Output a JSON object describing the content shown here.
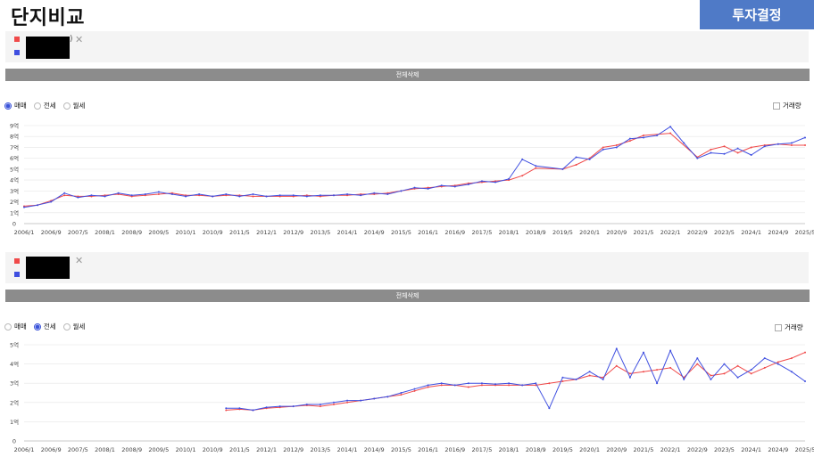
{
  "header": {
    "title": "단지비교",
    "decide_button": "투자결정"
  },
  "compare_panels": [
    {
      "delete_all_label": "전체삭제",
      "close_glyph": "✕",
      "legend_text_suffix": ")"
    },
    {
      "delete_all_label": "전체삭제",
      "close_glyph": "✕",
      "legend_text_suffix": ""
    }
  ],
  "controls": [
    {
      "radio_options": [
        "매매",
        "전세",
        "월세"
      ],
      "selected": 0,
      "volume_label": "거래량"
    },
    {
      "radio_options": [
        "매매",
        "전세",
        "월세"
      ],
      "selected": 1,
      "volume_label": "거래량"
    }
  ],
  "colors": {
    "series_red": "#f04a4a",
    "series_blue": "#3f4fe0",
    "accent": "#4f7ac7"
  },
  "chart_data": [
    {
      "type": "line",
      "title": "",
      "xlabel": "",
      "ylabel": "",
      "ylim": [
        0,
        9
      ],
      "grid": true,
      "yticks": [
        0,
        1,
        2,
        3,
        4,
        5,
        6,
        7,
        8,
        9
      ],
      "ytick_labels": [
        "0",
        "1억",
        "2억",
        "3억",
        "4억",
        "5억",
        "6억",
        "7억",
        "8억",
        "9억"
      ],
      "xticks": [
        "2006/1",
        "2006/9",
        "2007/5",
        "2008/1",
        "2008/9",
        "2009/5",
        "2010/1",
        "2010/9",
        "2011/5",
        "2012/1",
        "2012/9",
        "2013/5",
        "2014/1",
        "2014/9",
        "2015/5",
        "2016/1",
        "2016/9",
        "2017/5",
        "2018/1",
        "2018/9",
        "2019/5",
        "2020/1",
        "2020/9",
        "2021/5",
        "2022/1",
        "2022/9",
        "2023/5",
        "2024/1",
        "2024/9",
        "2025/5"
      ],
      "series": [
        {
          "color": "red",
          "points": [
            [
              0,
              1.6
            ],
            [
              0.5,
              1.7
            ],
            [
              1,
              2.1
            ],
            [
              1.5,
              2.6
            ],
            [
              2,
              2.5
            ],
            [
              2.5,
              2.5
            ],
            [
              3,
              2.6
            ],
            [
              3.5,
              2.7
            ],
            [
              4,
              2.5
            ],
            [
              4.5,
              2.6
            ],
            [
              5,
              2.7
            ],
            [
              5.5,
              2.8
            ],
            [
              6,
              2.6
            ],
            [
              6.5,
              2.6
            ],
            [
              7,
              2.5
            ],
            [
              7.5,
              2.6
            ],
            [
              8,
              2.6
            ],
            [
              8.5,
              2.5
            ],
            [
              9,
              2.5
            ],
            [
              9.5,
              2.5
            ],
            [
              10,
              2.5
            ],
            [
              10.5,
              2.6
            ],
            [
              11,
              2.5
            ],
            [
              11.5,
              2.6
            ],
            [
              12,
              2.6
            ],
            [
              12.5,
              2.7
            ],
            [
              13,
              2.7
            ],
            [
              13.5,
              2.8
            ],
            [
              14,
              3.0
            ],
            [
              14.5,
              3.2
            ],
            [
              15,
              3.3
            ],
            [
              15.5,
              3.4
            ],
            [
              16,
              3.5
            ],
            [
              16.5,
              3.7
            ],
            [
              17,
              3.8
            ],
            [
              17.5,
              3.9
            ],
            [
              18,
              4.0
            ],
            [
              18.5,
              4.4
            ],
            [
              19,
              5.1
            ],
            [
              20,
              5.0
            ],
            [
              20.5,
              5.4
            ],
            [
              21,
              6.0
            ],
            [
              21.5,
              7.0
            ],
            [
              22,
              7.2
            ],
            [
              22.5,
              7.6
            ],
            [
              23,
              8.1
            ],
            [
              24,
              8.3
            ],
            [
              25,
              6.1
            ],
            [
              25.5,
              6.8
            ],
            [
              26,
              7.1
            ],
            [
              26.5,
              6.5
            ],
            [
              27,
              7.0
            ],
            [
              27.5,
              7.2
            ],
            [
              28,
              7.3
            ],
            [
              28.5,
              7.2
            ],
            [
              29,
              7.2
            ]
          ]
        },
        {
          "color": "blue",
          "points": [
            [
              0,
              1.5
            ],
            [
              0.5,
              1.7
            ],
            [
              1,
              2.0
            ],
            [
              1.5,
              2.8
            ],
            [
              2,
              2.4
            ],
            [
              2.5,
              2.6
            ],
            [
              3,
              2.5
            ],
            [
              3.5,
              2.8
            ],
            [
              4,
              2.6
            ],
            [
              4.5,
              2.7
            ],
            [
              5,
              2.9
            ],
            [
              5.5,
              2.7
            ],
            [
              6,
              2.5
            ],
            [
              6.5,
              2.7
            ],
            [
              7,
              2.5
            ],
            [
              7.5,
              2.7
            ],
            [
              8,
              2.5
            ],
            [
              8.5,
              2.7
            ],
            [
              9,
              2.5
            ],
            [
              9.5,
              2.6
            ],
            [
              10,
              2.6
            ],
            [
              10.5,
              2.5
            ],
            [
              11,
              2.6
            ],
            [
              11.5,
              2.6
            ],
            [
              12,
              2.7
            ],
            [
              12.5,
              2.6
            ],
            [
              13,
              2.8
            ],
            [
              13.5,
              2.7
            ],
            [
              14,
              3.0
            ],
            [
              14.5,
              3.3
            ],
            [
              15,
              3.2
            ],
            [
              15.5,
              3.5
            ],
            [
              16,
              3.4
            ],
            [
              16.5,
              3.6
            ],
            [
              17,
              3.9
            ],
            [
              17.5,
              3.8
            ],
            [
              18,
              4.1
            ],
            [
              18.5,
              5.9
            ],
            [
              19,
              5.3
            ],
            [
              20,
              5.0
            ],
            [
              20.5,
              6.1
            ],
            [
              21,
              5.9
            ],
            [
              21.5,
              6.8
            ],
            [
              22,
              7.0
            ],
            [
              22.5,
              7.8
            ],
            [
              23,
              7.9
            ],
            [
              23.5,
              8.1
            ],
            [
              24,
              8.9
            ],
            [
              24.5,
              7.4
            ],
            [
              25,
              6.0
            ],
            [
              25.5,
              6.5
            ],
            [
              26,
              6.4
            ],
            [
              26.5,
              6.9
            ],
            [
              27,
              6.3
            ],
            [
              27.5,
              7.1
            ],
            [
              28,
              7.3
            ],
            [
              28.5,
              7.4
            ],
            [
              29,
              7.9
            ]
          ]
        }
      ]
    },
    {
      "type": "line",
      "title": "",
      "xlabel": "",
      "ylabel": "",
      "ylim": [
        0,
        5
      ],
      "grid": true,
      "yticks": [
        0,
        1,
        2,
        3,
        4,
        5
      ],
      "ytick_labels": [
        "0",
        "1억",
        "2억",
        "3억",
        "4억",
        "5억"
      ],
      "xticks": [
        "2006/1",
        "2006/9",
        "2007/5",
        "2008/1",
        "2008/9",
        "2009/5",
        "2010/1",
        "2010/9",
        "2011/5",
        "2012/1",
        "2012/9",
        "2013/5",
        "2014/1",
        "2014/9",
        "2015/5",
        "2016/1",
        "2016/9",
        "2017/5",
        "2018/1",
        "2018/9",
        "2019/5",
        "2020/1",
        "2020/9",
        "2021/5",
        "2022/1",
        "2022/9",
        "2023/5",
        "2024/1",
        "2024/9",
        "2025/5"
      ],
      "series": [
        {
          "color": "red",
          "points": [
            [
              7.5,
              1.6
            ],
            [
              8,
              1.65
            ],
            [
              8.5,
              1.6
            ],
            [
              9,
              1.7
            ],
            [
              9.5,
              1.75
            ],
            [
              10,
              1.8
            ],
            [
              10.5,
              1.85
            ],
            [
              11,
              1.8
            ],
            [
              11.5,
              1.9
            ],
            [
              12,
              2.0
            ],
            [
              12.5,
              2.1
            ],
            [
              13,
              2.2
            ],
            [
              13.5,
              2.3
            ],
            [
              14,
              2.4
            ],
            [
              14.5,
              2.6
            ],
            [
              15,
              2.8
            ],
            [
              15.5,
              2.9
            ],
            [
              16,
              2.9
            ],
            [
              16.5,
              2.8
            ],
            [
              17,
              2.9
            ],
            [
              17.5,
              2.9
            ],
            [
              18,
              2.9
            ],
            [
              18.5,
              2.9
            ],
            [
              19,
              2.9
            ],
            [
              19.5,
              3.0
            ],
            [
              20,
              3.1
            ],
            [
              20.5,
              3.2
            ],
            [
              21,
              3.4
            ],
            [
              21.5,
              3.3
            ],
            [
              22,
              3.9
            ],
            [
              22.5,
              3.5
            ],
            [
              23,
              3.6
            ],
            [
              23.5,
              3.7
            ],
            [
              24,
              3.8
            ],
            [
              24.5,
              3.3
            ],
            [
              25,
              4.0
            ],
            [
              25.5,
              3.4
            ],
            [
              26,
              3.5
            ],
            [
              26.5,
              3.9
            ],
            [
              27,
              3.5
            ],
            [
              27.5,
              3.8
            ],
            [
              28,
              4.1
            ],
            [
              28.5,
              4.3
            ],
            [
              29,
              4.6
            ]
          ]
        },
        {
          "color": "blue",
          "points": [
            [
              7.5,
              1.7
            ],
            [
              8,
              1.7
            ],
            [
              8.5,
              1.6
            ],
            [
              9,
              1.75
            ],
            [
              9.5,
              1.8
            ],
            [
              10,
              1.8
            ],
            [
              10.5,
              1.9
            ],
            [
              11,
              1.9
            ],
            [
              11.5,
              2.0
            ],
            [
              12,
              2.1
            ],
            [
              12.5,
              2.1
            ],
            [
              13,
              2.2
            ],
            [
              13.5,
              2.3
            ],
            [
              14,
              2.5
            ],
            [
              14.5,
              2.7
            ],
            [
              15,
              2.9
            ],
            [
              15.5,
              3.0
            ],
            [
              16,
              2.9
            ],
            [
              16.5,
              3.0
            ],
            [
              17,
              3.0
            ],
            [
              17.5,
              2.95
            ],
            [
              18,
              3.0
            ],
            [
              18.5,
              2.9
            ],
            [
              19,
              3.0
            ],
            [
              19.5,
              1.7
            ],
            [
              20,
              3.3
            ],
            [
              20.5,
              3.2
            ],
            [
              21,
              3.6
            ],
            [
              21.5,
              3.2
            ],
            [
              22,
              4.8
            ],
            [
              22.5,
              3.3
            ],
            [
              23,
              4.6
            ],
            [
              23.5,
              3.0
            ],
            [
              24,
              4.7
            ],
            [
              24.5,
              3.2
            ],
            [
              25,
              4.3
            ],
            [
              25.5,
              3.2
            ],
            [
              26,
              4.0
            ],
            [
              26.5,
              3.3
            ],
            [
              27,
              3.7
            ],
            [
              27.5,
              4.3
            ],
            [
              28,
              4.0
            ],
            [
              28.5,
              3.6
            ],
            [
              29,
              3.1
            ]
          ]
        }
      ]
    }
  ]
}
